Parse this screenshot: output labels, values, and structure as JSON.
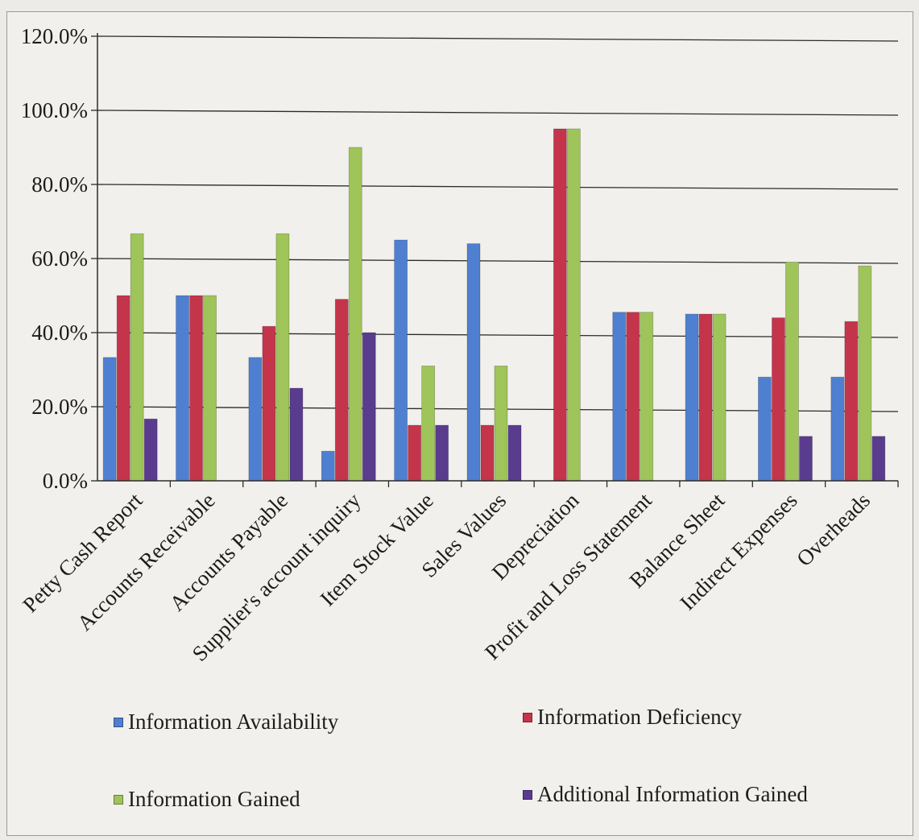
{
  "chart_data": {
    "type": "bar",
    "title": "",
    "xlabel": "",
    "ylabel": "",
    "ylim": [
      0,
      120
    ],
    "y_ticks": [
      "0.0%",
      "20.0%",
      "40.0%",
      "60.0%",
      "80.0%",
      "100.0%",
      "120.0%"
    ],
    "grid": true,
    "legend_position": "bottom",
    "categories": [
      "Petty Cash Report",
      "Accounts Receivable",
      "Accounts Payable",
      "Supplier's account inquiry",
      "Item Stock Value",
      "Sales Values",
      "Depreciation",
      "Profit and Loss Statement",
      "Balance Sheet",
      "Indirect Expenses",
      "Overheads"
    ],
    "series": [
      {
        "name": "Information Availability",
        "color": "#4f7fd0",
        "values": [
          33.3,
          50.0,
          33.3,
          8.0,
          65.0,
          64.0,
          0,
          45.5,
          45.0,
          28.0,
          28.0
        ]
      },
      {
        "name": "Information Deficiency",
        "color": "#c4354b",
        "values": [
          50.0,
          50.0,
          41.7,
          49.0,
          15.0,
          15.0,
          95.0,
          45.5,
          45.0,
          44.0,
          43.0
        ]
      },
      {
        "name": "Information Gained",
        "color": "#9fc45a",
        "values": [
          66.7,
          50.0,
          66.7,
          90.0,
          31.0,
          31.0,
          95.0,
          45.5,
          45.0,
          59.0,
          58.0
        ]
      },
      {
        "name": "Additional Information Gained",
        "color": "#5a3c8e",
        "values": [
          16.7,
          0,
          25.0,
          40.0,
          15.0,
          15.0,
          0,
          0,
          0,
          12.0,
          12.0
        ]
      }
    ]
  }
}
